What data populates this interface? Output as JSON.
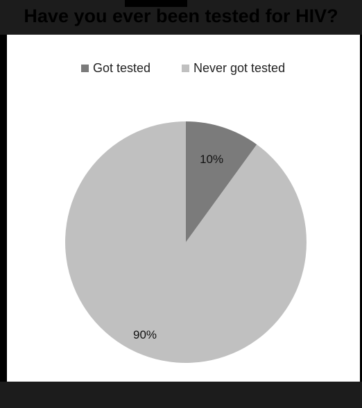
{
  "chart_data": {
    "type": "pie",
    "title": "Have you ever been tested for HIV?",
    "legend_position": "top",
    "categories": [
      "Got tested",
      "Never got tested"
    ],
    "values": [
      10,
      90
    ],
    "labels": [
      "10%",
      "90%"
    ],
    "colors": [
      "#7b7b7b",
      "#c0c0c0"
    ],
    "start_angle_deg": 0,
    "direction": "clockwise"
  }
}
